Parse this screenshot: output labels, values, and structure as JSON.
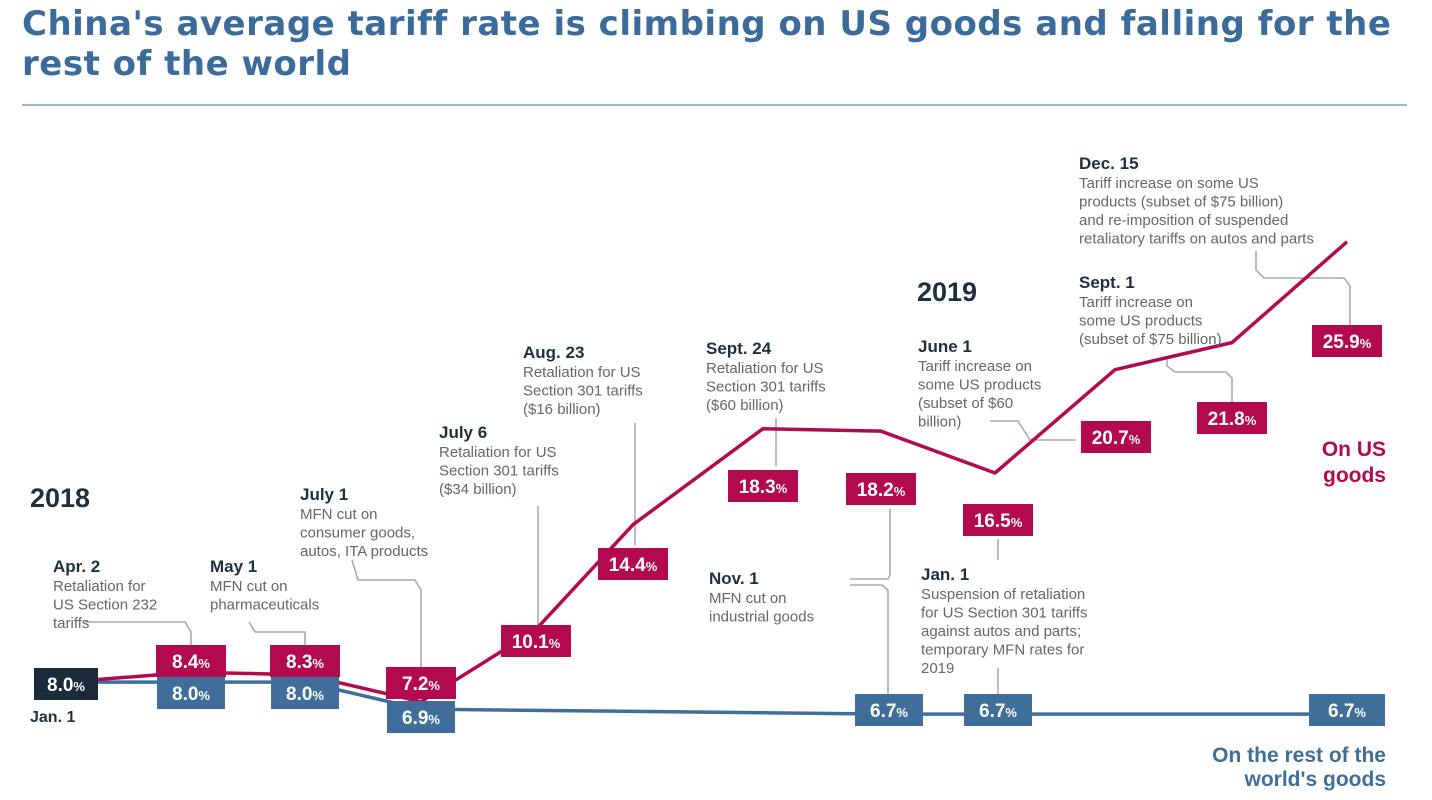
{
  "title": "China's average tariff rate is climbing on US goods and falling for the rest of the world",
  "colors": {
    "us": "#b3094f",
    "world": "#3f6e9b",
    "start": "#1c2b3a",
    "text": "#1f2f40",
    "muted": "#666666",
    "leader": "#aaaaaa",
    "title": "#3b6b9a"
  },
  "chart_data": {
    "type": "line",
    "title": "China's average tariff rate is climbing on US goods and falling for the rest of the world",
    "x": [
      "Jan. 1 2018",
      "Apr. 2 2018",
      "May 1 2018",
      "July 1 2018",
      "July 6 2018",
      "Aug. 23 2018",
      "Sept. 24 2018",
      "Nov. 1 2018",
      "Jan. 1 2019",
      "June 1 2019",
      "Sept. 1 2019",
      "Dec. 15 2019"
    ],
    "series": [
      {
        "name": "On US goods",
        "values": [
          8.0,
          8.4,
          8.3,
          7.2,
          10.1,
          14.4,
          18.3,
          18.2,
          16.5,
          20.7,
          21.8,
          25.9
        ]
      },
      {
        "name": "On the rest of the world's goods",
        "values": [
          8.0,
          8.0,
          8.0,
          6.9,
          null,
          null,
          null,
          6.7,
          6.7,
          null,
          null,
          6.7
        ]
      }
    ],
    "labels": {
      "us": [
        "8.4",
        "8.3",
        "7.2",
        "10.1",
        "14.4",
        "18.3",
        "18.2",
        "16.5",
        "20.7",
        "21.8",
        "25.9"
      ],
      "world": [
        "8.0",
        "8.0",
        "6.9",
        "6.7",
        "6.7",
        "6.7"
      ],
      "start": "8.0",
      "pct": "%"
    },
    "series_labels": {
      "us": [
        "On US",
        "goods"
      ],
      "world": [
        "On the rest of the",
        "world's goods"
      ]
    },
    "years": [
      "2018",
      "2019"
    ],
    "start_label": "Jan. 1",
    "annotations": [
      {
        "date": "Apr. 2",
        "lines": [
          "Retaliation for",
          "US Section 232",
          "tariffs"
        ]
      },
      {
        "date": "May 1",
        "lines": [
          "MFN cut on",
          "pharmaceuticals"
        ]
      },
      {
        "date": "July 1",
        "lines": [
          "MFN cut on",
          "consumer goods,",
          "autos, ITA products"
        ]
      },
      {
        "date": "July 6",
        "lines": [
          "Retaliation for US",
          "Section 301 tariffs",
          "($34 billion)"
        ]
      },
      {
        "date": "Aug. 23",
        "lines": [
          "Retaliation for US",
          "Section 301 tariffs",
          "($16 billion)"
        ]
      },
      {
        "date": "Sept. 24",
        "lines": [
          "Retaliation for US",
          "Section 301 tariffs",
          "($60 billion)"
        ]
      },
      {
        "date": "Nov. 1",
        "lines": [
          "MFN cut on",
          "industrial goods"
        ]
      },
      {
        "date": "Jan. 1",
        "lines": [
          "Suspension of retaliation",
          "for US Section 301 tariffs",
          "against autos and parts;",
          "temporary MFN rates for",
          "2019"
        ]
      },
      {
        "date": "June 1",
        "lines": [
          "Tariff increase on",
          "some US products",
          "(subset of $60",
          "billion)"
        ]
      },
      {
        "date": "Sept. 1",
        "lines": [
          "Tariff increase on",
          "some US products",
          "(subset of $75 billion)"
        ]
      },
      {
        "date": "Dec. 15",
        "lines": [
          "Tariff increase on some US",
          "products (subset of $75 billion)",
          "and re-imposition of suspended",
          "retaliatory tariffs on autos and parts"
        ]
      }
    ]
  }
}
